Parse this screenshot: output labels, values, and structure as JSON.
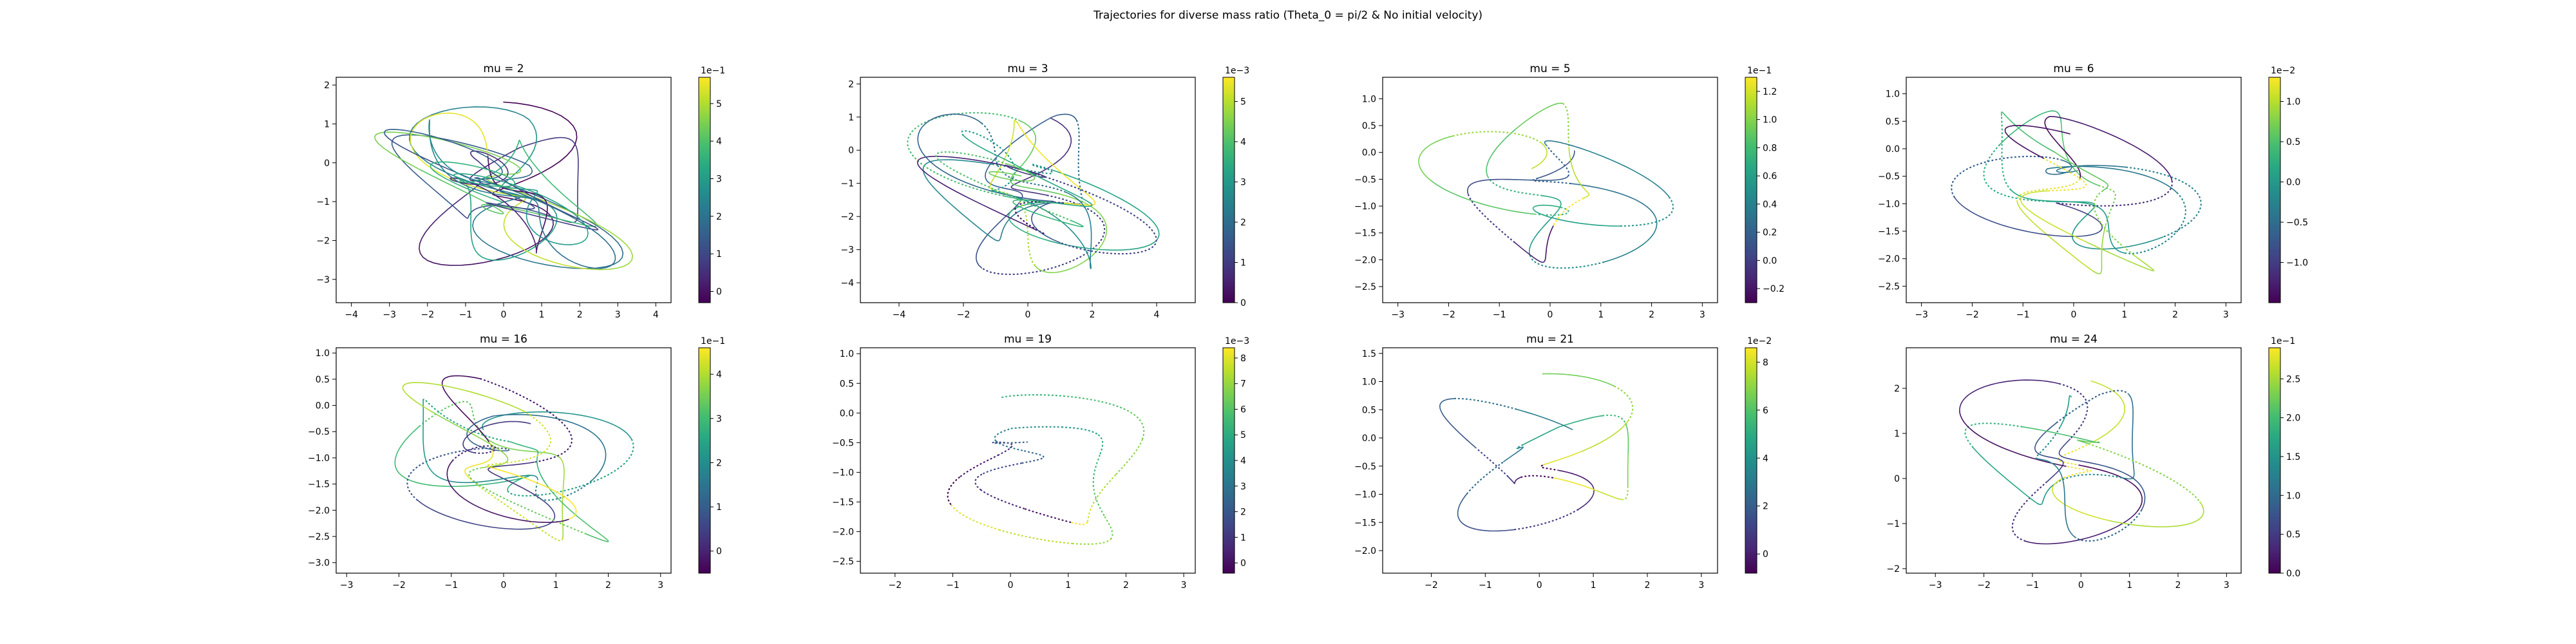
{
  "figure": {
    "title": "Trajectories for diverse mass ratio (Theta_0 = pi/2  &  No initial velocity)"
  },
  "chart_data": [
    {
      "type": "scatter",
      "title": "mu = 2",
      "mu": 2,
      "xlim": [
        -4.4,
        4.4
      ],
      "ylim": [
        -3.6,
        2.2
      ],
      "xticks": [
        -4,
        -3,
        -2,
        -1,
        0,
        1,
        2,
        3,
        4
      ],
      "yticks": [
        -3,
        -2,
        -1,
        0,
        1,
        2
      ],
      "colorbar": {
        "exponent": "1e−1",
        "ticks": [
          0,
          1,
          2,
          3,
          4,
          5
        ],
        "min": -0.3,
        "max": 5.7
      },
      "grid": false,
      "legend": "none",
      "cmap": "viridis",
      "lobes": 10,
      "style": "solid"
    },
    {
      "type": "scatter",
      "title": "mu = 3",
      "mu": 3,
      "xlim": [
        -5.2,
        5.2
      ],
      "ylim": [
        -4.6,
        2.2
      ],
      "xticks": [
        -4,
        -2,
        0,
        2,
        4
      ],
      "yticks": [
        -4,
        -3,
        -2,
        -1,
        0,
        1,
        2
      ],
      "colorbar": {
        "exponent": "1e−3",
        "ticks": [
          0,
          1,
          2,
          3,
          4,
          5
        ],
        "min": 0,
        "max": 5.6
      },
      "grid": false,
      "legend": "none",
      "cmap": "viridis",
      "lobes": 8,
      "style": "mixed"
    },
    {
      "type": "scatter",
      "title": "mu = 5",
      "mu": 5,
      "xlim": [
        -3.3,
        3.3
      ],
      "ylim": [
        -2.8,
        1.4
      ],
      "xticks": [
        -3,
        -2,
        -1,
        0,
        1,
        2,
        3
      ],
      "yticks": [
        -2.5,
        -2.0,
        -1.5,
        -1.0,
        -0.5,
        0.0,
        0.5,
        1.0
      ],
      "colorbar": {
        "exponent": "1e−1",
        "ticks": [
          -0.2,
          0.0,
          0.2,
          0.4,
          0.6,
          0.8,
          1.0,
          1.2
        ],
        "min": -0.3,
        "max": 1.3
      },
      "grid": false,
      "legend": "none",
      "cmap": "viridis",
      "lobes": 3,
      "style": "mixed"
    },
    {
      "type": "scatter",
      "title": "mu = 6",
      "mu": 6,
      "xlim": [
        -3.3,
        3.3
      ],
      "ylim": [
        -2.8,
        1.3
      ],
      "xticks": [
        -3,
        -2,
        -1,
        0,
        1,
        2,
        3
      ],
      "yticks": [
        -2.5,
        -2.0,
        -1.5,
        -1.0,
        -0.5,
        0.0,
        0.5,
        1.0
      ],
      "colorbar": {
        "exponent": "1e−2",
        "ticks": [
          -1.0,
          -0.5,
          0.0,
          0.5,
          1.0
        ],
        "min": -1.5,
        "max": 1.3
      },
      "grid": false,
      "legend": "none",
      "cmap": "viridis",
      "lobes": 5,
      "style": "mixed"
    },
    {
      "type": "scatter",
      "title": "mu = 16",
      "mu": 16,
      "xlim": [
        -3.2,
        3.2
      ],
      "ylim": [
        -3.2,
        1.1
      ],
      "xticks": [
        -3,
        -2,
        -1,
        0,
        1,
        2,
        3
      ],
      "yticks": [
        -3.0,
        -2.5,
        -2.0,
        -1.5,
        -1.0,
        -0.5,
        0.0,
        0.5,
        1.0
      ],
      "colorbar": {
        "exponent": "1e−1",
        "ticks": [
          0,
          1,
          2,
          3,
          4
        ],
        "min": -0.5,
        "max": 4.6
      },
      "grid": false,
      "legend": "none",
      "cmap": "viridis",
      "lobes": 6,
      "style": "mixed"
    },
    {
      "type": "scatter",
      "title": "mu = 19",
      "mu": 19,
      "xlim": [
        -2.6,
        3.2
      ],
      "ylim": [
        -2.7,
        1.1
      ],
      "xticks": [
        -2,
        -1,
        0,
        1,
        2,
        3
      ],
      "yticks": [
        -2.5,
        -2.0,
        -1.5,
        -1.0,
        -0.5,
        0.0,
        0.5,
        1.0
      ],
      "colorbar": {
        "exponent": "1e−3",
        "ticks": [
          0,
          1,
          2,
          3,
          4,
          5,
          6,
          7,
          8
        ],
        "min": -0.4,
        "max": 8.4
      },
      "grid": false,
      "legend": "none",
      "cmap": "viridis",
      "lobes": 1,
      "style": "dotted"
    },
    {
      "type": "scatter",
      "title": "mu = 21",
      "mu": 21,
      "xlim": [
        -2.9,
        3.3
      ],
      "ylim": [
        -2.4,
        1.6
      ],
      "xticks": [
        -2,
        -1,
        0,
        1,
        2,
        3
      ],
      "yticks": [
        -2.0,
        -1.5,
        -1.0,
        -0.5,
        0.0,
        0.5,
        1.0,
        1.5
      ],
      "colorbar": {
        "exponent": "1e−2",
        "ticks": [
          0,
          2,
          4,
          6,
          8
        ],
        "min": -0.8,
        "max": 8.6
      },
      "grid": false,
      "legend": "none",
      "cmap": "viridis",
      "lobes": 2,
      "style": "mixed"
    },
    {
      "type": "scatter",
      "title": "mu = 24",
      "mu": 24,
      "xlim": [
        -3.6,
        3.3
      ],
      "ylim": [
        -2.1,
        2.9
      ],
      "xticks": [
        -3,
        -2,
        -1,
        0,
        1,
        2,
        3
      ],
      "yticks": [
        -2,
        -1,
        0,
        1,
        2
      ],
      "colorbar": {
        "exponent": "1e−1",
        "ticks": [
          0.0,
          0.5,
          1.0,
          1.5,
          2.0,
          2.5
        ],
        "min": 0,
        "max": 2.9
      },
      "grid": false,
      "legend": "none",
      "cmap": "viridis",
      "lobes": 4,
      "style": "mixed"
    }
  ]
}
